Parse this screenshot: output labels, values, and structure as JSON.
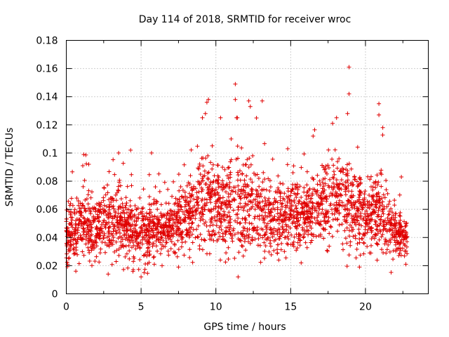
{
  "chart_data": {
    "type": "scatter",
    "title": "Day 114 of 2018, SRMTID for receiver wroc",
    "xlabel": "GPS time / hours",
    "ylabel": "SRMTID / TECUs",
    "xlim": [
      0,
      24.2
    ],
    "ylim": [
      0,
      0.18
    ],
    "xticks": [
      0,
      5,
      10,
      15,
      20
    ],
    "xtick_labels": [
      "0",
      "5",
      "10",
      "15",
      "20"
    ],
    "yticks": [
      0,
      0.02,
      0.04,
      0.06,
      0.08,
      0.1,
      0.12,
      0.14,
      0.16,
      0.18
    ],
    "ytick_labels": [
      "0",
      "0.02",
      "0.04",
      "0.06",
      "0.08",
      "0.1",
      "0.12",
      "0.14",
      "0.16",
      "0.18"
    ],
    "grid": true,
    "marker": "plus",
    "color": "#e00000",
    "x_range_observed": [
      0,
      22.8
    ],
    "envelope": {
      "note": "dense point cloud; per-hour typical level and spread of SRMTID (TECU) estimated from the figure",
      "hours": [
        0,
        1,
        2,
        3,
        4,
        5,
        6,
        7,
        8,
        9,
        10,
        11,
        12,
        13,
        14,
        15,
        16,
        17,
        18,
        19,
        20,
        21,
        22,
        22.8
      ],
      "median": [
        0.04,
        0.05,
        0.045,
        0.05,
        0.048,
        0.042,
        0.045,
        0.048,
        0.055,
        0.065,
        0.06,
        0.062,
        0.06,
        0.058,
        0.05,
        0.055,
        0.055,
        0.062,
        0.068,
        0.065,
        0.052,
        0.06,
        0.042,
        0.038
      ],
      "spread": [
        0.012,
        0.015,
        0.013,
        0.016,
        0.016,
        0.014,
        0.014,
        0.013,
        0.015,
        0.022,
        0.018,
        0.024,
        0.024,
        0.018,
        0.016,
        0.016,
        0.016,
        0.018,
        0.02,
        0.022,
        0.016,
        0.022,
        0.012,
        0.01
      ]
    },
    "notable_points": [
      {
        "x": 18.9,
        "y": 0.161
      },
      {
        "x": 18.9,
        "y": 0.142
      },
      {
        "x": 11.3,
        "y": 0.149
      },
      {
        "x": 11.3,
        "y": 0.138
      },
      {
        "x": 12.2,
        "y": 0.137
      },
      {
        "x": 12.3,
        "y": 0.133
      },
      {
        "x": 13.1,
        "y": 0.137
      },
      {
        "x": 9.5,
        "y": 0.138
      },
      {
        "x": 9.4,
        "y": 0.136
      },
      {
        "x": 20.9,
        "y": 0.135
      },
      {
        "x": 20.9,
        "y": 0.127
      },
      {
        "x": 9.1,
        "y": 0.125
      },
      {
        "x": 9.3,
        "y": 0.128
      },
      {
        "x": 4.3,
        "y": 0.102
      },
      {
        "x": 5.7,
        "y": 0.1
      },
      {
        "x": 14.8,
        "y": 0.103
      },
      {
        "x": 16.5,
        "y": 0.112
      },
      {
        "x": 17.8,
        "y": 0.121
      },
      {
        "x": 18.8,
        "y": 0.128
      },
      {
        "x": 3.5,
        "y": 0.1
      },
      {
        "x": 5.0,
        "y": 0.012
      },
      {
        "x": 5.2,
        "y": 0.015
      },
      {
        "x": 2.8,
        "y": 0.014
      },
      {
        "x": 19.6,
        "y": 0.019
      },
      {
        "x": 7.5,
        "y": 0.019
      },
      {
        "x": 6.4,
        "y": 0.02
      },
      {
        "x": 22.7,
        "y": 0.021
      },
      {
        "x": 0.1,
        "y": 0.021
      },
      {
        "x": 10.3,
        "y": 0.024
      },
      {
        "x": 14.2,
        "y": 0.024
      },
      {
        "x": 15.7,
        "y": 0.022
      },
      {
        "x": 0.7,
        "y": 0.058
      },
      {
        "x": 1.1,
        "y": 0.091
      },
      {
        "x": 1.5,
        "y": 0.092
      },
      {
        "x": 22.4,
        "y": 0.083
      }
    ]
  }
}
